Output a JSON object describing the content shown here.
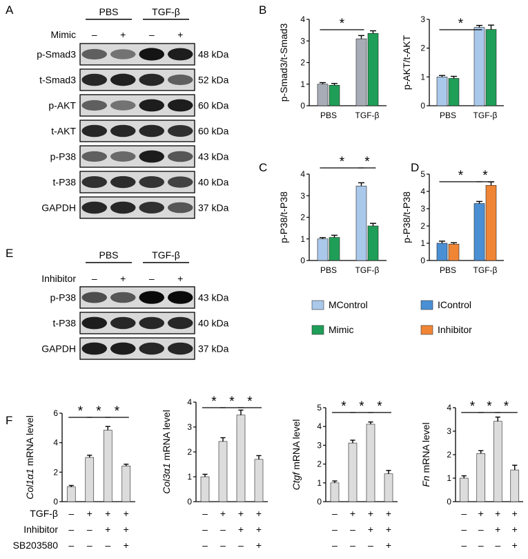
{
  "panels": {
    "A": {
      "label": "A",
      "groups": [
        "PBS",
        "TGF-β"
      ],
      "treatment_label": "Mimic",
      "treatment_signs": [
        "–",
        "+",
        "–",
        "+"
      ],
      "blots": [
        {
          "name": "p-Smad3",
          "kda": "48 kDa"
        },
        {
          "name": "t-Smad3",
          "kda": "52 kDa"
        },
        {
          "name": "p-AKT",
          "kda": "60 kDa"
        },
        {
          "name": "t-AKT",
          "kda": "60 kDa"
        },
        {
          "name": "p-P38",
          "kda": "43 kDa"
        },
        {
          "name": "t-P38",
          "kda": "40 kDa"
        },
        {
          "name": "GAPDH",
          "kda": "37 kDa"
        }
      ]
    },
    "E": {
      "label": "E",
      "groups": [
        "PBS",
        "TGF-β"
      ],
      "treatment_label": "Inhibitor",
      "treatment_signs": [
        "–",
        "+",
        "–",
        "+"
      ],
      "blots": [
        {
          "name": "p-P38",
          "kda": "43 kDa"
        },
        {
          "name": "t-P38",
          "kda": "40 kDa"
        },
        {
          "name": "GAPDH",
          "kda": "37 kDa"
        }
      ]
    },
    "F": {
      "label": "F",
      "rows": [
        {
          "label": "TGF-β",
          "signs": [
            "–",
            "+",
            "+",
            "+"
          ]
        },
        {
          "label": "Inhibitor",
          "signs": [
            "–",
            "–",
            "+",
            "+"
          ]
        },
        {
          "label": "SB203580",
          "signs": [
            "–",
            "–",
            "–",
            "+"
          ]
        }
      ]
    }
  },
  "legend": [
    {
      "label": "MControl",
      "color": "#a9c8ea"
    },
    {
      "label": "IControl",
      "color": "#4a8fd4"
    },
    {
      "label": "Mimic",
      "color": "#1f9e57"
    },
    {
      "label": "Inhibitor",
      "color": "#f08536"
    }
  ],
  "colors": {
    "grey_bar": "#a8acb6",
    "light_grey_bar": "#dcdcdc"
  },
  "chart_data": [
    {
      "id": "B1",
      "panel_label": "B",
      "type": "bar",
      "categories": [
        "PBS",
        "TGF-β"
      ],
      "ylabel": "p-Smad3/t-Smad3",
      "ylim": [
        0,
        4
      ],
      "yticks": [
        0,
        1,
        2,
        3,
        4
      ],
      "series": [
        {
          "color": "#a8acb6",
          "values": [
            1.0,
            3.1
          ],
          "errors": [
            0.07,
            0.15
          ]
        },
        {
          "name": "Mimic",
          "color": "#1f9e57",
          "values": [
            0.95,
            3.35
          ],
          "errors": [
            0.08,
            0.12
          ]
        }
      ],
      "significance": [
        {
          "between": [
            0,
            2
          ],
          "label": "*"
        }
      ]
    },
    {
      "id": "B2",
      "panel_label": "",
      "type": "bar",
      "categories": [
        "PBS",
        "TGF-β"
      ],
      "ylabel": "p-AKT/t-AKT",
      "ylim": [
        0,
        3
      ],
      "yticks": [
        0,
        1,
        2,
        3
      ],
      "series": [
        {
          "name": "MControl",
          "color": "#a9c8ea",
          "values": [
            1.0,
            2.72
          ],
          "errors": [
            0.05,
            0.07
          ]
        },
        {
          "name": "Mimic",
          "color": "#1f9e57",
          "values": [
            0.95,
            2.65
          ],
          "errors": [
            0.07,
            0.15
          ]
        }
      ],
      "significance": [
        {
          "between": [
            0,
            2
          ],
          "label": "*"
        }
      ]
    },
    {
      "id": "C",
      "panel_label": "C",
      "type": "bar",
      "categories": [
        "PBS",
        "TGF-β"
      ],
      "ylabel": "p-P38/t-P38",
      "ylim": [
        0,
        4
      ],
      "yticks": [
        0,
        1,
        2,
        3,
        4
      ],
      "series": [
        {
          "name": "MControl",
          "color": "#a9c8ea",
          "values": [
            1.0,
            3.45
          ],
          "errors": [
            0.06,
            0.15
          ]
        },
        {
          "name": "Mimic",
          "color": "#1f9e57",
          "values": [
            1.07,
            1.6
          ],
          "errors": [
            0.1,
            0.12
          ]
        }
      ],
      "significance": [
        {
          "between": [
            0,
            2
          ],
          "label": "*"
        },
        {
          "between": [
            2,
            3
          ],
          "label": "*"
        }
      ]
    },
    {
      "id": "D",
      "panel_label": "D",
      "type": "bar",
      "categories": [
        "PBS",
        "TGF-β"
      ],
      "ylabel": "p-P38/t-P38",
      "ylim": [
        0,
        5
      ],
      "yticks": [
        0,
        1,
        2,
        3,
        4,
        5
      ],
      "series": [
        {
          "name": "IControl",
          "color": "#4a8fd4",
          "values": [
            1.0,
            3.3
          ],
          "errors": [
            0.12,
            0.12
          ]
        },
        {
          "name": "Inhibitor",
          "color": "#f08536",
          "values": [
            0.95,
            4.35
          ],
          "errors": [
            0.08,
            0.2
          ]
        }
      ],
      "significance": [
        {
          "between": [
            0,
            2
          ],
          "label": "*"
        },
        {
          "between": [
            2,
            3
          ],
          "label": "*"
        }
      ]
    },
    {
      "id": "F1",
      "type": "bar",
      "ylabel_italic": "Col1α1",
      "ylabel_rest": " mRNA level",
      "ylim": [
        0,
        6
      ],
      "yticks": [
        0,
        2,
        4,
        6
      ],
      "series": [
        {
          "color": "#dcdcdc",
          "values": [
            1.0,
            3.0,
            4.85,
            2.42
          ],
          "errors": [
            0.1,
            0.15,
            0.25,
            0.12
          ]
        }
      ],
      "significance": [
        {
          "between": [
            0,
            1
          ],
          "label": "*"
        },
        {
          "between": [
            1,
            2
          ],
          "label": "*"
        },
        {
          "between": [
            2,
            3
          ],
          "label": "*"
        }
      ]
    },
    {
      "id": "F2",
      "type": "bar",
      "ylabel_italic": "Col3α1",
      "ylabel_rest": " mRNA level",
      "ylim": [
        0,
        4
      ],
      "yticks": [
        0,
        1,
        2,
        3,
        4
      ],
      "series": [
        {
          "color": "#dcdcdc",
          "values": [
            1.0,
            2.42,
            3.48,
            1.7
          ],
          "errors": [
            0.1,
            0.15,
            0.2,
            0.15
          ]
        }
      ],
      "significance": [
        {
          "between": [
            0,
            1
          ],
          "label": "*"
        },
        {
          "between": [
            1,
            2
          ],
          "label": "*"
        },
        {
          "between": [
            2,
            3
          ],
          "label": "*"
        }
      ]
    },
    {
      "id": "F3",
      "type": "bar",
      "ylabel_italic": "Ctgf",
      "ylabel_rest": " mRNA level",
      "ylim": [
        0,
        5
      ],
      "yticks": [
        0,
        1,
        2,
        3,
        4,
        5
      ],
      "series": [
        {
          "color": "#dcdcdc",
          "values": [
            1.0,
            3.12,
            4.12,
            1.48
          ],
          "errors": [
            0.1,
            0.15,
            0.12,
            0.18
          ]
        }
      ],
      "significance": [
        {
          "between": [
            0,
            1
          ],
          "label": "*"
        },
        {
          "between": [
            1,
            2
          ],
          "label": "*"
        },
        {
          "between": [
            2,
            3
          ],
          "label": "*"
        }
      ]
    },
    {
      "id": "F4",
      "type": "bar",
      "ylabel_italic": "Fn",
      "ylabel_rest": " mRNA level",
      "ylim": [
        0,
        4
      ],
      "yticks": [
        0,
        1,
        2,
        3,
        4
      ],
      "series": [
        {
          "color": "#dcdcdc",
          "values": [
            1.0,
            2.05,
            3.42,
            1.35
          ],
          "errors": [
            0.1,
            0.12,
            0.18,
            0.2
          ]
        }
      ],
      "significance": [
        {
          "between": [
            0,
            1
          ],
          "label": "*"
        },
        {
          "between": [
            1,
            2
          ],
          "label": "*"
        },
        {
          "between": [
            2,
            3
          ],
          "label": "*"
        }
      ]
    }
  ]
}
